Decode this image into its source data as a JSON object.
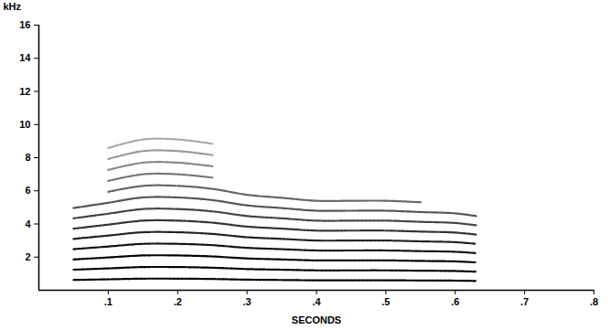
{
  "chart_data": {
    "type": "spectrogram",
    "x_label": "SECONDS",
    "y_label": "kHz",
    "xlim": [
      0,
      0.8
    ],
    "ylim": [
      0,
      16
    ],
    "xticks": [
      {
        "value": 0.1,
        "label": ".1"
      },
      {
        "value": 0.2,
        "label": ".2"
      },
      {
        "value": 0.3,
        "label": ".3"
      },
      {
        "value": 0.4,
        "label": ".4"
      },
      {
        "value": 0.5,
        "label": ".5"
      },
      {
        "value": 0.6,
        "label": ".6"
      },
      {
        "value": 0.7,
        "label": ".7"
      },
      {
        "value": 0.8,
        "label": ".8"
      }
    ],
    "yticks": [
      2,
      4,
      6,
      8,
      10,
      12,
      14,
      16
    ],
    "grid": false,
    "series": [
      {
        "color": "#000000",
        "x": [
          0.05,
          0.1,
          0.15,
          0.2,
          0.25,
          0.3,
          0.35,
          0.4,
          0.45,
          0.5,
          0.55,
          0.6,
          0.63
        ],
        "values": [
          0.62,
          0.66,
          0.7,
          0.7,
          0.68,
          0.64,
          0.62,
          0.6,
          0.6,
          0.6,
          0.59,
          0.58,
          0.56
        ]
      },
      {
        "color": "#000000",
        "x": [
          0.05,
          0.1,
          0.15,
          0.2,
          0.25,
          0.3,
          0.35,
          0.4,
          0.45,
          0.5,
          0.55,
          0.6,
          0.63
        ],
        "values": [
          1.24,
          1.32,
          1.4,
          1.4,
          1.36,
          1.28,
          1.24,
          1.2,
          1.2,
          1.2,
          1.18,
          1.16,
          1.12
        ]
      },
      {
        "color": "#000000",
        "x": [
          0.05,
          0.1,
          0.15,
          0.2,
          0.25,
          0.3,
          0.35,
          0.4,
          0.45,
          0.5,
          0.55,
          0.6,
          0.63
        ],
        "values": [
          1.86,
          1.98,
          2.1,
          2.1,
          2.04,
          1.92,
          1.86,
          1.8,
          1.8,
          1.8,
          1.77,
          1.74,
          1.68
        ]
      },
      {
        "color": "#111111",
        "x": [
          0.05,
          0.1,
          0.15,
          0.2,
          0.25,
          0.3,
          0.35,
          0.4,
          0.45,
          0.5,
          0.55,
          0.6,
          0.63
        ],
        "values": [
          2.48,
          2.64,
          2.8,
          2.8,
          2.72,
          2.56,
          2.48,
          2.4,
          2.4,
          2.4,
          2.36,
          2.32,
          2.24
        ]
      },
      {
        "color": "#222222",
        "x": [
          0.05,
          0.1,
          0.15,
          0.2,
          0.25,
          0.3,
          0.35,
          0.4,
          0.45,
          0.5,
          0.55,
          0.6,
          0.63
        ],
        "values": [
          3.1,
          3.3,
          3.5,
          3.5,
          3.4,
          3.2,
          3.1,
          3.0,
          3.0,
          3.0,
          2.95,
          2.9,
          2.8
        ]
      },
      {
        "color": "#333333",
        "x": [
          0.05,
          0.1,
          0.15,
          0.2,
          0.25,
          0.3,
          0.35,
          0.4,
          0.45,
          0.5,
          0.55,
          0.6,
          0.63
        ],
        "values": [
          3.72,
          3.96,
          4.2,
          4.2,
          4.08,
          3.84,
          3.72,
          3.6,
          3.6,
          3.6,
          3.54,
          3.48,
          3.36
        ]
      },
      {
        "color": "#444444",
        "x": [
          0.05,
          0.1,
          0.15,
          0.2,
          0.25,
          0.3,
          0.35,
          0.4,
          0.45,
          0.5,
          0.55,
          0.6,
          0.63
        ],
        "values": [
          4.34,
          4.62,
          4.9,
          4.9,
          4.76,
          4.48,
          4.34,
          4.2,
          4.2,
          4.2,
          4.13,
          4.06,
          3.92
        ]
      },
      {
        "color": "#555555",
        "x": [
          0.05,
          0.1,
          0.15,
          0.2,
          0.25,
          0.3,
          0.35,
          0.4,
          0.45,
          0.5,
          0.55,
          0.6,
          0.63
        ],
        "values": [
          4.96,
          5.28,
          5.6,
          5.6,
          5.44,
          5.12,
          4.96,
          4.8,
          4.8,
          4.8,
          4.72,
          4.64,
          4.48
        ]
      },
      {
        "color": "#666666",
        "x": [
          0.1,
          0.15,
          0.2,
          0.25,
          0.3,
          0.35,
          0.4,
          0.45,
          0.5,
          0.55
        ],
        "values": [
          5.94,
          6.3,
          6.3,
          6.12,
          5.76,
          5.58,
          5.4,
          5.4,
          5.4,
          5.31
        ]
      },
      {
        "color": "#777777",
        "x": [
          0.1,
          0.15,
          0.2,
          0.25
        ],
        "values": [
          6.6,
          7.0,
          7.0,
          6.8
        ]
      },
      {
        "color": "#888888",
        "x": [
          0.1,
          0.15,
          0.2,
          0.25
        ],
        "values": [
          7.26,
          7.7,
          7.7,
          7.48
        ]
      },
      {
        "color": "#999999",
        "x": [
          0.1,
          0.15,
          0.2,
          0.25
        ],
        "values": [
          7.92,
          8.4,
          8.4,
          8.16
        ]
      },
      {
        "color": "#aaaaaa",
        "x": [
          0.1,
          0.15,
          0.2,
          0.25
        ],
        "values": [
          8.58,
          9.1,
          9.1,
          8.84
        ]
      }
    ]
  }
}
